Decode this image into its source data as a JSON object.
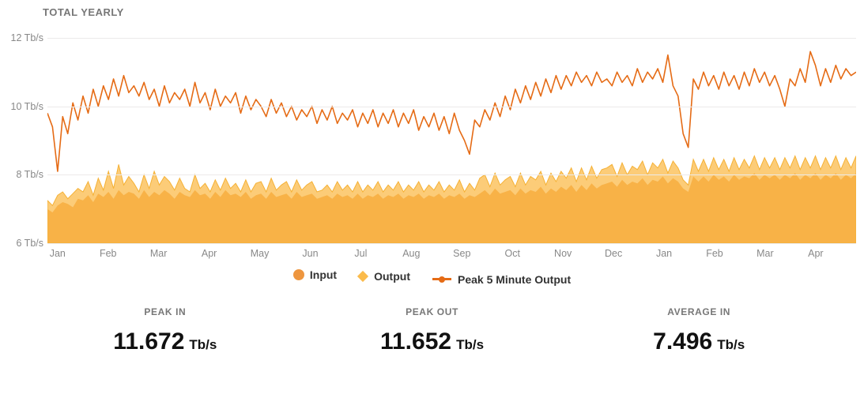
{
  "title": "TOTAL YEARLY",
  "chart": {
    "background_color": "#ffffff",
    "grid_color": "#eceaea",
    "axis_label_color": "#888888",
    "axis_label_fontsize": 12.5,
    "ylim": [
      6,
      12
    ],
    "yticks": [
      6,
      8,
      10,
      12
    ],
    "ytick_labels": [
      "6 Tb/s",
      "8 Tb/s",
      "10 Tb/s",
      "12 Tb/s"
    ],
    "x_labels": [
      "Jan",
      "Feb",
      "Mar",
      "Apr",
      "May",
      "Jun",
      "Jul",
      "Aug",
      "Sep",
      "Oct",
      "Nov",
      "Dec",
      "Jan",
      "Feb",
      "Mar",
      "Apr"
    ],
    "series": {
      "input": {
        "type": "area",
        "label": "Input",
        "fill_color": "#ee963f",
        "fill_opacity": 1.0,
        "stroke_color": "#ee963f",
        "data": [
          7.0,
          6.9,
          7.1,
          7.2,
          7.15,
          7.05,
          7.3,
          7.25,
          7.4,
          7.2,
          7.45,
          7.35,
          7.5,
          7.3,
          7.55,
          7.4,
          7.5,
          7.45,
          7.3,
          7.55,
          7.35,
          7.5,
          7.4,
          7.55,
          7.45,
          7.3,
          7.5,
          7.4,
          7.35,
          7.55,
          7.4,
          7.45,
          7.3,
          7.5,
          7.35,
          7.55,
          7.4,
          7.45,
          7.35,
          7.5,
          7.3,
          7.4,
          7.45,
          7.3,
          7.5,
          7.35,
          7.4,
          7.45,
          7.3,
          7.5,
          7.35,
          7.4,
          7.45,
          7.3,
          7.35,
          7.4,
          7.3,
          7.45,
          7.35,
          7.4,
          7.3,
          7.45,
          7.3,
          7.4,
          7.35,
          7.45,
          7.3,
          7.4,
          7.35,
          7.45,
          7.3,
          7.4,
          7.35,
          7.45,
          7.3,
          7.4,
          7.35,
          7.45,
          7.3,
          7.4,
          7.35,
          7.45,
          7.3,
          7.4,
          7.35,
          7.45,
          7.55,
          7.4,
          7.6,
          7.45,
          7.5,
          7.55,
          7.4,
          7.6,
          7.45,
          7.55,
          7.5,
          7.65,
          7.45,
          7.6,
          7.5,
          7.65,
          7.55,
          7.7,
          7.5,
          7.7,
          7.55,
          7.75,
          7.6,
          7.7,
          7.75,
          7.8,
          7.65,
          7.85,
          7.7,
          7.8,
          7.75,
          7.9,
          7.7,
          7.85,
          7.8,
          7.95,
          7.75,
          7.9,
          7.8,
          7.6,
          7.5,
          7.95,
          7.8,
          7.95,
          7.8,
          8.0,
          7.85,
          7.95,
          7.8,
          8.0,
          7.85,
          7.95,
          7.9,
          8.05,
          7.85,
          8.0,
          7.9,
          8.0,
          7.85,
          8.0,
          7.9,
          8.05,
          7.85,
          8.0,
          7.9,
          8.05,
          7.85,
          8.0,
          7.9,
          8.05,
          7.85,
          8.0,
          7.9,
          8.05
        ]
      },
      "output": {
        "type": "area",
        "label": "Output",
        "fill_color": "#fbbb4b",
        "fill_opacity": 0.75,
        "stroke_color": "#f5b135",
        "data": [
          7.25,
          7.1,
          7.4,
          7.5,
          7.3,
          7.45,
          7.6,
          7.5,
          7.8,
          7.4,
          7.9,
          7.55,
          8.1,
          7.6,
          8.3,
          7.7,
          7.95,
          7.75,
          7.5,
          8.0,
          7.6,
          8.1,
          7.7,
          7.95,
          7.8,
          7.55,
          7.9,
          7.6,
          7.5,
          8.0,
          7.6,
          7.75,
          7.5,
          7.85,
          7.55,
          7.9,
          7.6,
          7.75,
          7.5,
          7.85,
          7.5,
          7.75,
          7.8,
          7.5,
          7.9,
          7.55,
          7.7,
          7.8,
          7.5,
          7.85,
          7.55,
          7.7,
          7.8,
          7.5,
          7.55,
          7.7,
          7.5,
          7.8,
          7.55,
          7.7,
          7.5,
          7.8,
          7.5,
          7.7,
          7.55,
          7.8,
          7.5,
          7.7,
          7.55,
          7.8,
          7.5,
          7.7,
          7.55,
          7.8,
          7.5,
          7.7,
          7.55,
          7.8,
          7.5,
          7.7,
          7.55,
          7.85,
          7.5,
          7.75,
          7.55,
          7.9,
          8.0,
          7.65,
          8.05,
          7.7,
          7.85,
          7.95,
          7.65,
          8.05,
          7.7,
          7.95,
          7.85,
          8.1,
          7.7,
          8.05,
          7.8,
          8.1,
          7.9,
          8.2,
          7.8,
          8.2,
          7.85,
          8.25,
          7.9,
          8.15,
          8.2,
          8.3,
          7.95,
          8.35,
          8.0,
          8.25,
          8.15,
          8.4,
          8.0,
          8.35,
          8.2,
          8.45,
          8.05,
          8.4,
          8.2,
          7.85,
          7.7,
          8.45,
          8.1,
          8.45,
          8.1,
          8.5,
          8.15,
          8.45,
          8.1,
          8.5,
          8.15,
          8.45,
          8.2,
          8.55,
          8.15,
          8.5,
          8.2,
          8.5,
          8.15,
          8.5,
          8.2,
          8.55,
          8.15,
          8.5,
          8.2,
          8.55,
          8.15,
          8.5,
          8.2,
          8.55,
          8.15,
          8.5,
          8.2,
          8.55
        ]
      },
      "peak": {
        "type": "line",
        "label": "Peak 5 Minute Output",
        "stroke_color": "#e56b15",
        "stroke_width": 1.6,
        "data": [
          9.8,
          9.4,
          8.1,
          9.7,
          9.2,
          10.1,
          9.6,
          10.3,
          9.8,
          10.5,
          10.0,
          10.6,
          10.2,
          10.8,
          10.3,
          10.9,
          10.4,
          10.6,
          10.3,
          10.7,
          10.2,
          10.5,
          10.0,
          10.6,
          10.1,
          10.4,
          10.2,
          10.5,
          10.0,
          10.7,
          10.1,
          10.4,
          9.9,
          10.5,
          10.0,
          10.3,
          10.1,
          10.4,
          9.8,
          10.3,
          9.9,
          10.2,
          10.0,
          9.7,
          10.2,
          9.8,
          10.1,
          9.7,
          10.0,
          9.6,
          9.9,
          9.7,
          10.0,
          9.5,
          9.9,
          9.6,
          10.0,
          9.5,
          9.8,
          9.6,
          9.9,
          9.4,
          9.8,
          9.5,
          9.9,
          9.4,
          9.8,
          9.5,
          9.9,
          9.4,
          9.8,
          9.5,
          9.9,
          9.3,
          9.7,
          9.4,
          9.8,
          9.3,
          9.7,
          9.2,
          9.8,
          9.3,
          9.0,
          8.6,
          9.6,
          9.4,
          9.9,
          9.6,
          10.1,
          9.7,
          10.3,
          9.9,
          10.5,
          10.1,
          10.6,
          10.2,
          10.7,
          10.3,
          10.8,
          10.4,
          10.9,
          10.5,
          10.9,
          10.6,
          11.0,
          10.7,
          10.9,
          10.6,
          11.0,
          10.7,
          10.8,
          10.6,
          11.0,
          10.7,
          10.9,
          10.6,
          11.1,
          10.7,
          11.0,
          10.8,
          11.1,
          10.7,
          11.5,
          10.6,
          10.3,
          9.2,
          8.8,
          10.8,
          10.5,
          11.0,
          10.6,
          10.9,
          10.5,
          11.0,
          10.6,
          10.9,
          10.5,
          11.0,
          10.6,
          11.1,
          10.7,
          11.0,
          10.6,
          10.9,
          10.5,
          10.0,
          10.8,
          10.6,
          11.1,
          10.7,
          11.6,
          11.2,
          10.6,
          11.1,
          10.7,
          11.2,
          10.8,
          11.1,
          10.9,
          11.0
        ]
      }
    },
    "legend": [
      {
        "label": "Input",
        "swatch": "circle",
        "color": "#ee963f"
      },
      {
        "label": "Output",
        "swatch": "diamond",
        "color": "#fbbb4b"
      },
      {
        "label": "Peak 5 Minute Output",
        "swatch": "line",
        "color": "#e56b15"
      }
    ]
  },
  "stats": [
    {
      "label": "PEAK IN",
      "value": "11.672",
      "unit": "Tb/s"
    },
    {
      "label": "PEAK OUT",
      "value": "11.652",
      "unit": "Tb/s"
    },
    {
      "label": "AVERAGE IN",
      "value": "7.496",
      "unit": "Tb/s"
    }
  ]
}
